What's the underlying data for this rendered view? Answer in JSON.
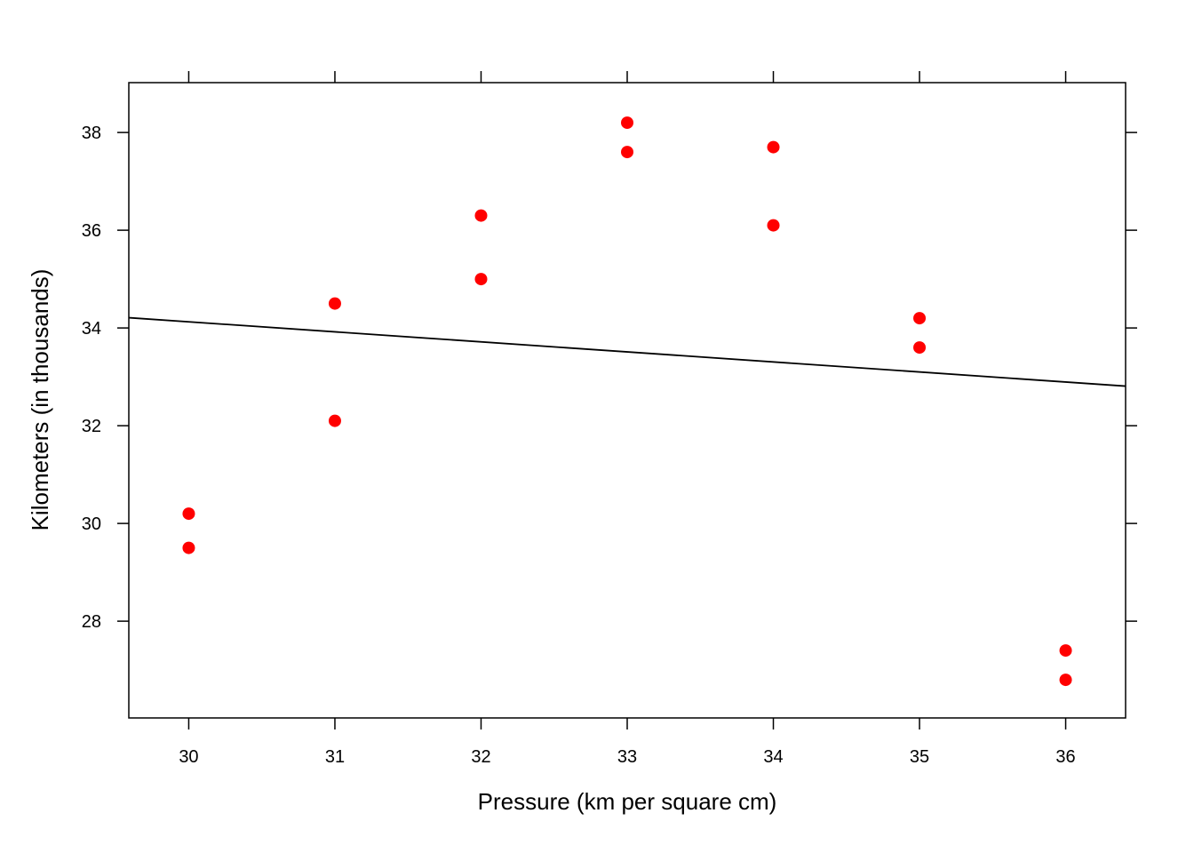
{
  "chart_data": {
    "type": "scatter",
    "title": "",
    "xlabel": "Pressure (km per square cm)",
    "ylabel": "Kilometers (in thousands)",
    "xlim": [
      29.59,
      36.41
    ],
    "ylim": [
      26.02,
      39.02
    ],
    "xticks": [
      30,
      31,
      32,
      33,
      34,
      35,
      36
    ],
    "yticks": [
      28,
      30,
      32,
      34,
      36,
      38
    ],
    "grid": false,
    "point_color": "#ff0000",
    "line_color": "#000000",
    "points": [
      {
        "x": 30,
        "y": 30.2
      },
      {
        "x": 30,
        "y": 29.5
      },
      {
        "x": 31,
        "y": 34.5
      },
      {
        "x": 31,
        "y": 32.1
      },
      {
        "x": 32,
        "y": 36.3
      },
      {
        "x": 32,
        "y": 35.0
      },
      {
        "x": 33,
        "y": 38.2
      },
      {
        "x": 33,
        "y": 37.6
      },
      {
        "x": 34,
        "y": 37.7
      },
      {
        "x": 34,
        "y": 36.1
      },
      {
        "x": 35,
        "y": 34.2
      },
      {
        "x": 35,
        "y": 33.6
      },
      {
        "x": 36,
        "y": 27.4
      },
      {
        "x": 36,
        "y": 26.8
      }
    ],
    "fit_line": {
      "x": [
        29.59,
        36.41
      ],
      "y": [
        34.21,
        32.81
      ]
    }
  }
}
